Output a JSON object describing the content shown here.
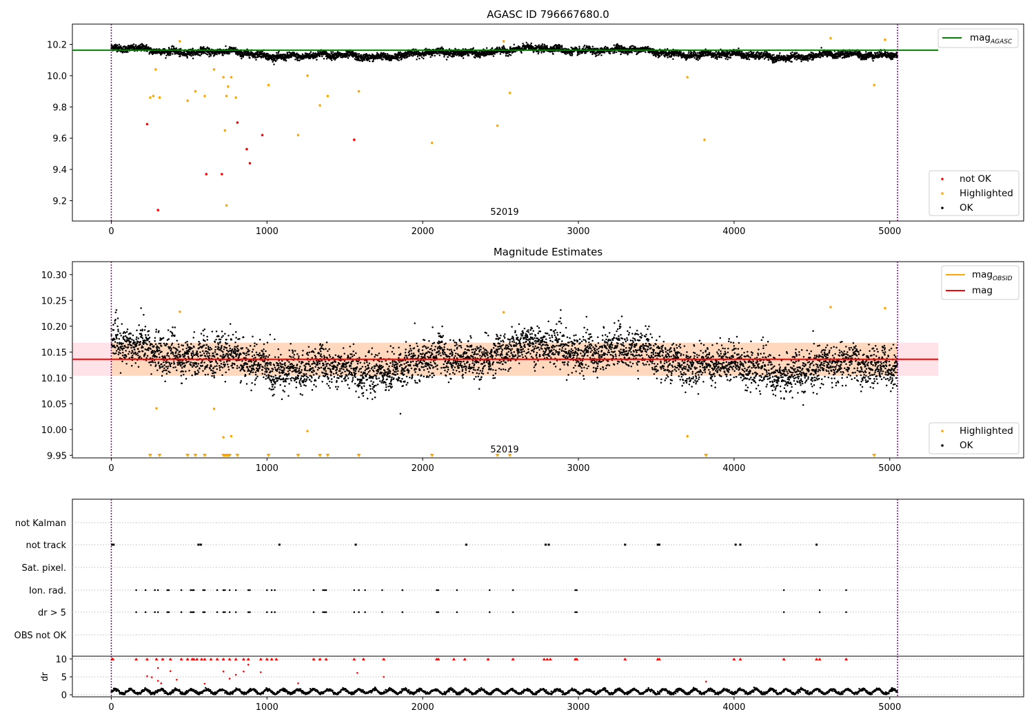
{
  "chart_data": [
    {
      "type": "scatter",
      "title": "AGASC ID 796667680.0",
      "xlim": [
        -250,
        5860
      ],
      "ylim": [
        9.07,
        10.33
      ],
      "xticks": [
        0,
        1000,
        2000,
        3000,
        4000,
        5000
      ],
      "yticks": [
        9.2,
        9.4,
        9.6,
        9.8,
        10.0,
        10.2
      ],
      "obsid_label": "52019",
      "obsid_bounds": [
        0,
        5050
      ],
      "mag_agasc": 10.163,
      "series": [
        {
          "name": "not OK",
          "color": "#ff0000",
          "points": [
            [
              230,
              9.69
            ],
            [
              300,
              9.14
            ],
            [
              610,
              9.37
            ],
            [
              710,
              9.37
            ],
            [
              810,
              9.7
            ],
            [
              870,
              9.53
            ],
            [
              890,
              9.44
            ],
            [
              970,
              9.62
            ],
            [
              1560,
              9.59
            ]
          ]
        },
        {
          "name": "Highlighted",
          "color": "#ffa500",
          "points": [
            [
              440,
              10.22
            ],
            [
              285,
              10.04
            ],
            [
              250,
              9.86
            ],
            [
              270,
              9.87
            ],
            [
              310,
              9.86
            ],
            [
              490,
              9.84
            ],
            [
              540,
              9.9
            ],
            [
              600,
              9.87
            ],
            [
              660,
              10.04
            ],
            [
              720,
              9.99
            ],
            [
              730,
              9.65
            ],
            [
              740,
              9.87
            ],
            [
              750,
              9.93
            ],
            [
              770,
              9.99
            ],
            [
              800,
              9.86
            ],
            [
              740,
              9.17
            ],
            [
              1010,
              9.94
            ],
            [
              1200,
              9.62
            ],
            [
              1260,
              10.0
            ],
            [
              1340,
              9.81
            ],
            [
              1390,
              9.87
            ],
            [
              1590,
              9.9
            ],
            [
              2060,
              9.57
            ],
            [
              2480,
              9.68
            ],
            [
              2520,
              10.22
            ],
            [
              2560,
              9.89
            ],
            [
              3700,
              9.99
            ],
            [
              3810,
              9.59
            ],
            [
              4620,
              10.24
            ],
            [
              4900,
              9.94
            ],
            [
              4970,
              10.23
            ]
          ]
        },
        {
          "name": "OK",
          "color": "#000000",
          "n": 5050,
          "mean": 10.145,
          "noise": 0.012
        }
      ],
      "legend": [
        {
          "label": "mag",
          "sub": "AGASC",
          "kind": "line",
          "color": "#008000",
          "position": "upper right"
        },
        {
          "label": "not OK",
          "kind": "dot",
          "color": "#ff0000"
        },
        {
          "label": "Highlighted",
          "kind": "dot",
          "color": "#ffa500"
        },
        {
          "label": "OK",
          "kind": "dot",
          "color": "#000000"
        }
      ]
    },
    {
      "type": "scatter",
      "title": "Magnitude Estimates",
      "xlim": [
        -250,
        5860
      ],
      "ylim": [
        9.945,
        10.325
      ],
      "xticks": [
        0,
        1000,
        2000,
        3000,
        4000,
        5000
      ],
      "yticks": [
        9.95,
        10.0,
        10.05,
        10.1,
        10.15,
        10.2,
        10.25,
        10.3
      ],
      "obsid_label": "52019",
      "mag": 10.136,
      "mag_band": [
        10.104,
        10.168
      ],
      "mag_obsid_band": [
        10.104,
        10.168
      ],
      "highlighted": [
        [
          440,
          10.228
        ],
        [
          290,
          10.041
        ],
        [
          660,
          10.04
        ],
        [
          720,
          9.985
        ],
        [
          770,
          9.987
        ],
        [
          1260,
          9.997
        ],
        [
          2520,
          10.227
        ],
        [
          3700,
          9.987
        ],
        [
          4620,
          10.237
        ],
        [
          4970,
          10.235
        ]
      ],
      "clipped_x": [
        250,
        310,
        490,
        540,
        600,
        720,
        730,
        740,
        750,
        760,
        810,
        1010,
        1200,
        1340,
        1390,
        1590,
        2060,
        2480,
        2560,
        3820,
        4900
      ],
      "legend": [
        {
          "label": "mag",
          "sub": "OBSID",
          "kind": "line",
          "color": "#ffa500"
        },
        {
          "label": "mag",
          "kind": "line",
          "color": "#ff0000"
        },
        {
          "label": "Highlighted",
          "kind": "dot",
          "color": "#ffa500"
        },
        {
          "label": "OK",
          "kind": "dot",
          "color": "#000000"
        }
      ]
    },
    {
      "type": "scatter",
      "flags": [
        "not Kalman",
        "not track",
        "Sat. pixel.",
        "Ion. rad.",
        "dr > 5",
        "OBS not OK"
      ],
      "xticks": [
        0,
        1000,
        2000,
        3000,
        4000,
        5000
      ],
      "not_track_x": [
        5,
        15,
        560,
        575,
        1080,
        1570,
        2280,
        2790,
        2810,
        3300,
        3510,
        3520,
        4010,
        4040,
        4530
      ],
      "ion_rad_x": [
        160,
        220,
        280,
        300,
        360,
        370,
        450,
        510,
        520,
        530,
        590,
        600,
        680,
        720,
        730,
        760,
        800,
        880,
        890,
        1000,
        1030,
        1050,
        1300,
        1360,
        1370,
        1380,
        1560,
        1590,
        1630,
        1740,
        1870,
        2090,
        2100,
        2220,
        2430,
        2580,
        2980,
        2990,
        4320,
        4550,
        4720
      ],
      "dr_gt5_x": [
        160,
        220,
        280,
        300,
        360,
        370,
        450,
        510,
        520,
        530,
        590,
        600,
        680,
        720,
        730,
        760,
        800,
        880,
        890,
        1000,
        1030,
        1050,
        1300,
        1360,
        1370,
        1380,
        1560,
        1590,
        1630,
        1740,
        1870,
        2090,
        2100,
        2220,
        2430,
        2580,
        2980,
        2990,
        4320,
        4550,
        4720
      ],
      "dr_ylabel": "dr",
      "dr_yticks": [
        0,
        5,
        10
      ],
      "dr_clip_x": [
        5,
        10,
        160,
        230,
        290,
        330,
        380,
        450,
        490,
        520,
        530,
        550,
        580,
        600,
        640,
        680,
        720,
        760,
        800,
        850,
        880,
        960,
        1000,
        1030,
        1060,
        1300,
        1340,
        1380,
        1560,
        1620,
        1750,
        2090,
        2100,
        2200,
        2270,
        2420,
        2580,
        2780,
        2800,
        2820,
        2980,
        2990,
        3300,
        3510,
        3520,
        4000,
        4040,
        4320,
        4530,
        4550,
        4720
      ]
    }
  ]
}
